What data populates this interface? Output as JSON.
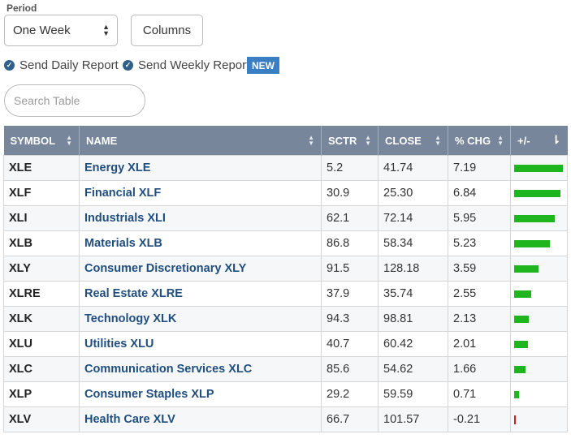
{
  "period": {
    "label": "Period",
    "selected": "One Week"
  },
  "columns_button": "Columns",
  "reports": {
    "daily": "Send Daily Report",
    "weekly": "Send Weekly Report",
    "badge": "NEW"
  },
  "search": {
    "placeholder": "Search Table",
    "value": ""
  },
  "table": {
    "headers": [
      "SYMBOL",
      "NAME",
      "SCTR",
      "CLOSE",
      "% CHG",
      "+/-"
    ],
    "rows": [
      {
        "symbol": "XLE",
        "name": "Energy XLE",
        "sctr": "5.2",
        "close": "41.74",
        "chg": "7.19"
      },
      {
        "symbol": "XLF",
        "name": "Financial XLF",
        "sctr": "30.9",
        "close": "25.30",
        "chg": "6.84"
      },
      {
        "symbol": "XLI",
        "name": "Industrials XLI",
        "sctr": "62.1",
        "close": "72.14",
        "chg": "5.95"
      },
      {
        "symbol": "XLB",
        "name": "Materials XLB",
        "sctr": "86.8",
        "close": "58.34",
        "chg": "5.23"
      },
      {
        "symbol": "XLY",
        "name": "Consumer Discretionary XLY",
        "sctr": "91.5",
        "close": "128.18",
        "chg": "3.59"
      },
      {
        "symbol": "XLRE",
        "name": "Real Estate XLRE",
        "sctr": "37.9",
        "close": "35.74",
        "chg": "2.55"
      },
      {
        "symbol": "XLK",
        "name": "Technology XLK",
        "sctr": "94.3",
        "close": "98.81",
        "chg": "2.13"
      },
      {
        "symbol": "XLU",
        "name": "Utilities XLU",
        "sctr": "40.7",
        "close": "60.42",
        "chg": "2.01"
      },
      {
        "symbol": "XLC",
        "name": "Communication Services XLC",
        "sctr": "85.6",
        "close": "54.62",
        "chg": "1.66"
      },
      {
        "symbol": "XLP",
        "name": "Consumer Staples XLP",
        "sctr": "29.2",
        "close": "59.59",
        "chg": "0.71"
      },
      {
        "symbol": "XLV",
        "name": "Health Care XLV",
        "sctr": "66.7",
        "close": "101.57",
        "chg": "-0.21"
      }
    ]
  },
  "colors": {
    "positive_bar": "#1eb51e",
    "negative_bar": "#cc1f1f",
    "header_bg": "#77869a",
    "name_link": "#1f4e7f"
  },
  "icons": {
    "check": "check-circle-icon",
    "sort": "sort-icon",
    "sort_desc": "sort-desc-icon",
    "select_arrows": "updown-arrows-icon"
  }
}
